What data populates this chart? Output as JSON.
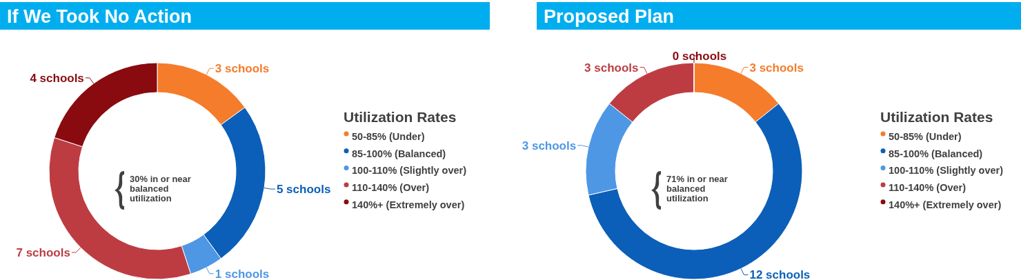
{
  "chart_data": [
    {
      "type": "donut",
      "title": "If We Took No Action",
      "legend_title": "Utilization Rates",
      "legend": "right",
      "categories": [
        "50-85% (Under)",
        "85-100% (Balanced)",
        "100-110% (Slightly over)",
        "110-140% (Over)",
        "140%+ (Extremely over)"
      ],
      "values": [
        3,
        5,
        1,
        7,
        4
      ],
      "colors": [
        "#f47c2a",
        "#0b5fb8",
        "#4d97e5",
        "#bd3c42",
        "#890b10"
      ],
      "value_labels": [
        "3 schools",
        "5 schools",
        "1 schools",
        "7 schools",
        "4 schools"
      ],
      "annotations": [
        "30% in or near balanced utilization"
      ]
    },
    {
      "type": "donut",
      "title": "Proposed Plan",
      "legend_title": "Utilization Rates",
      "legend": "right",
      "categories": [
        "50-85% (Under)",
        "85-100% (Balanced)",
        "100-110% (Slightly over)",
        "110-140% (Over)",
        "140%+ (Extremely over)"
      ],
      "values": [
        3,
        12,
        3,
        3,
        0
      ],
      "colors": [
        "#f47c2a",
        "#0b5fb8",
        "#4d97e5",
        "#bd3c42",
        "#890b10"
      ],
      "value_labels": [
        "3 schools",
        "12 schools",
        "3 schools",
        "3 schools",
        "0 schools"
      ],
      "annotations": [
        "71% in or near balanced utilization"
      ]
    }
  ]
}
